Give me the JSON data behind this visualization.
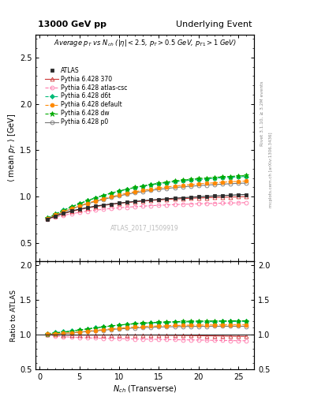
{
  "title_left": "13000 GeV pp",
  "title_right": "Underlying Event",
  "annotation": "Average $p_T$ vs $N_{ch}$ ($|\\eta| < 2.5$, $p_T > 0.5$ GeV, $p_{T1} > 1$ GeV)",
  "watermark": "ATLAS_2017_I1509919",
  "right_label1": "Rivet 3.1.10, ≥ 3.2M events",
  "right_label2": "mcplots.cern.ch [arXiv:1306.3436]",
  "ylabel_main": "$\\langle$ mean $p_T$ $\\rangle$ [GeV]",
  "ylabel_ratio": "Ratio to ATLAS",
  "xlabel": "$N_{ch}$ (Transverse)",
  "ylim_main": [
    0.3,
    2.75
  ],
  "ylim_ratio": [
    0.5,
    2.05
  ],
  "yticks_main": [
    0.5,
    1.0,
    1.5,
    2.0,
    2.5
  ],
  "yticks_ratio": [
    0.5,
    1.0,
    1.5,
    2.0
  ],
  "xlim": [
    -0.5,
    27
  ],
  "xticks": [
    0,
    5,
    10,
    15,
    20,
    25
  ],
  "series": {
    "ATLAS": {
      "x": [
        1,
        2,
        3,
        4,
        5,
        6,
        7,
        8,
        9,
        10,
        11,
        12,
        13,
        14,
        15,
        16,
        17,
        18,
        19,
        20,
        21,
        22,
        23,
        24,
        25,
        26
      ],
      "y": [
        0.757,
        0.79,
        0.82,
        0.845,
        0.865,
        0.882,
        0.897,
        0.91,
        0.92,
        0.93,
        0.94,
        0.948,
        0.956,
        0.963,
        0.97,
        0.977,
        0.983,
        0.988,
        0.993,
        0.998,
        1.003,
        1.007,
        1.011,
        1.015,
        1.019,
        1.022
      ],
      "color": "#2b2b2b",
      "marker": "s",
      "markersize": 3.5,
      "linestyle": "-",
      "linewidth": 0.8,
      "fillstyle": "full",
      "zorder": 10
    },
    "Pythia 6.428 370": {
      "x": [
        1,
        2,
        3,
        4,
        5,
        6,
        7,
        8,
        9,
        10,
        11,
        12,
        13,
        14,
        15,
        16,
        17,
        18,
        19,
        20,
        21,
        22,
        23,
        24,
        25,
        26
      ],
      "y": [
        0.76,
        0.79,
        0.817,
        0.84,
        0.86,
        0.877,
        0.892,
        0.905,
        0.916,
        0.927,
        0.936,
        0.944,
        0.951,
        0.958,
        0.964,
        0.969,
        0.974,
        0.978,
        0.982,
        0.985,
        0.988,
        0.991,
        0.993,
        0.995,
        0.997,
        0.999
      ],
      "color": "#cc3333",
      "marker": "^",
      "markersize": 3.5,
      "linestyle": "-",
      "linewidth": 0.8,
      "fillstyle": "none",
      "zorder": 5
    },
    "Pythia 6.428 atlas-csc": {
      "x": [
        1,
        2,
        3,
        4,
        5,
        6,
        7,
        8,
        9,
        10,
        11,
        12,
        13,
        14,
        15,
        16,
        17,
        18,
        19,
        20,
        21,
        22,
        23,
        24,
        25,
        26
      ],
      "y": [
        0.755,
        0.778,
        0.798,
        0.815,
        0.83,
        0.843,
        0.854,
        0.863,
        0.872,
        0.879,
        0.886,
        0.891,
        0.897,
        0.902,
        0.906,
        0.91,
        0.914,
        0.917,
        0.92,
        0.923,
        0.925,
        0.927,
        0.929,
        0.931,
        0.933,
        0.935
      ],
      "color": "#ff77aa",
      "marker": "o",
      "markersize": 3.5,
      "linestyle": "--",
      "linewidth": 0.8,
      "fillstyle": "none",
      "zorder": 4
    },
    "Pythia 6.428 d6t": {
      "x": [
        1,
        2,
        3,
        4,
        5,
        6,
        7,
        8,
        9,
        10,
        11,
        12,
        13,
        14,
        15,
        16,
        17,
        18,
        19,
        20,
        21,
        22,
        23,
        24,
        25,
        26
      ],
      "y": [
        0.77,
        0.815,
        0.855,
        0.892,
        0.925,
        0.957,
        0.987,
        1.013,
        1.037,
        1.059,
        1.079,
        1.097,
        1.112,
        1.126,
        1.139,
        1.15,
        1.16,
        1.169,
        1.177,
        1.184,
        1.191,
        1.197,
        1.203,
        1.208,
        1.213,
        1.217
      ],
      "color": "#00bb77",
      "marker": "D",
      "markersize": 3.0,
      "linestyle": "--",
      "linewidth": 0.8,
      "fillstyle": "full",
      "zorder": 6
    },
    "Pythia 6.428 default": {
      "x": [
        1,
        2,
        3,
        4,
        5,
        6,
        7,
        8,
        9,
        10,
        11,
        12,
        13,
        14,
        15,
        16,
        17,
        18,
        19,
        20,
        21,
        22,
        23,
        24,
        25,
        26
      ],
      "y": [
        0.764,
        0.802,
        0.838,
        0.87,
        0.9,
        0.928,
        0.954,
        0.977,
        0.999,
        1.018,
        1.036,
        1.053,
        1.067,
        1.081,
        1.093,
        1.104,
        1.114,
        1.122,
        1.13,
        1.137,
        1.143,
        1.149,
        1.155,
        1.16,
        1.164,
        1.168
      ],
      "color": "#ff8800",
      "marker": "o",
      "markersize": 3.5,
      "linestyle": "--",
      "linewidth": 0.8,
      "fillstyle": "full",
      "zorder": 7
    },
    "Pythia 6.428 dw": {
      "x": [
        1,
        2,
        3,
        4,
        5,
        6,
        7,
        8,
        9,
        10,
        11,
        12,
        13,
        14,
        15,
        16,
        17,
        18,
        19,
        20,
        21,
        22,
        23,
        24,
        25,
        26
      ],
      "y": [
        0.768,
        0.81,
        0.85,
        0.888,
        0.923,
        0.955,
        0.985,
        1.012,
        1.037,
        1.06,
        1.081,
        1.1,
        1.116,
        1.131,
        1.145,
        1.157,
        1.168,
        1.177,
        1.186,
        1.194,
        1.201,
        1.207,
        1.213,
        1.218,
        1.223,
        1.227
      ],
      "color": "#00aa00",
      "marker": "*",
      "markersize": 4.5,
      "linestyle": "--",
      "linewidth": 0.8,
      "fillstyle": "full",
      "zorder": 6
    },
    "Pythia 6.428 p0": {
      "x": [
        1,
        2,
        3,
        4,
        5,
        6,
        7,
        8,
        9,
        10,
        11,
        12,
        13,
        14,
        15,
        16,
        17,
        18,
        19,
        20,
        21,
        22,
        23,
        24,
        25,
        26
      ],
      "y": [
        0.762,
        0.8,
        0.835,
        0.867,
        0.896,
        0.923,
        0.947,
        0.969,
        0.99,
        1.008,
        1.025,
        1.041,
        1.054,
        1.067,
        1.078,
        1.088,
        1.097,
        1.105,
        1.112,
        1.118,
        1.124,
        1.13,
        1.134,
        1.139,
        1.143,
        1.146
      ],
      "color": "#777777",
      "marker": "o",
      "markersize": 3.5,
      "linestyle": "-",
      "linewidth": 0.8,
      "fillstyle": "none",
      "zorder": 5
    }
  }
}
